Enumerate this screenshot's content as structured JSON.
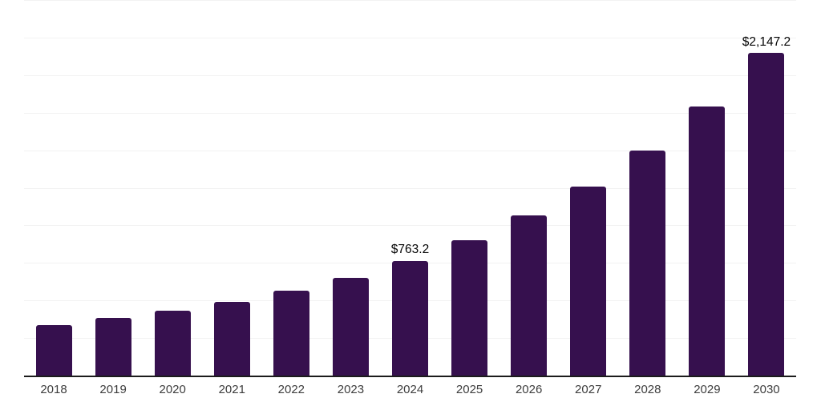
{
  "chart_data": {
    "type": "bar",
    "title": "",
    "xlabel": "",
    "ylabel": "",
    "categories": [
      "2018",
      "2019",
      "2020",
      "2021",
      "2022",
      "2023",
      "2024",
      "2025",
      "2026",
      "2027",
      "2028",
      "2029",
      "2030"
    ],
    "values": [
      335,
      382,
      430,
      489,
      564,
      649,
      763.2,
      900,
      1066,
      1256,
      1500,
      1793,
      2147.2
    ],
    "bar_labels": [
      "",
      "",
      "",
      "",
      "",
      "",
      "$763.2",
      "",
      "",
      "",
      "",
      "",
      "$2,147.2"
    ],
    "ylim": [
      0,
      2500
    ],
    "grid_step": 250,
    "grid": true,
    "legend": false,
    "y_axis_labels_visible": false,
    "colors": {
      "bar": "#36104E",
      "gridline": "#F2F2F2",
      "axis_line": "#1C1C1C",
      "value_label": "#050505",
      "tick_label": "#3D3D3D",
      "background": "#FFFFFF"
    }
  }
}
